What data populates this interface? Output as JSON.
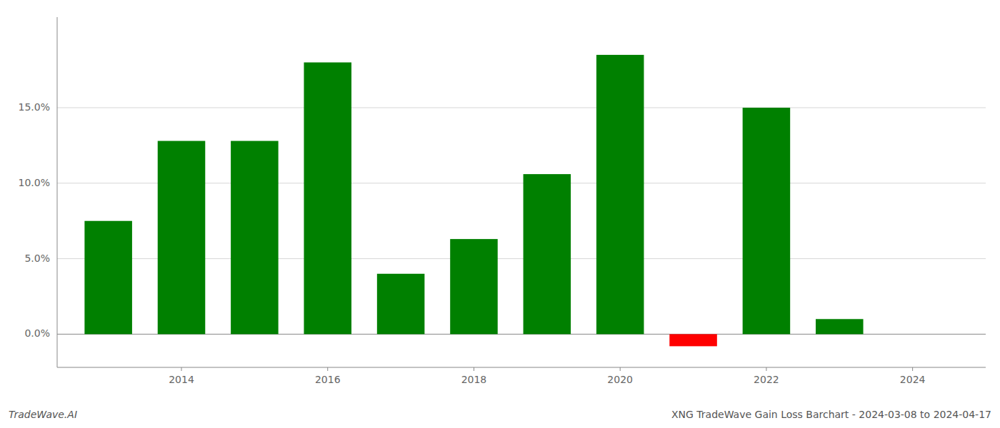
{
  "chart_data": {
    "type": "bar",
    "title": "XNG TradeWave Gain Loss Barchart - 2024-03-08 to 2024-04-17",
    "annotations": [
      "TradeWave.AI"
    ],
    "x": [
      2013,
      2014,
      2015,
      2016,
      2017,
      2018,
      2019,
      2020,
      2021,
      2022,
      2023
    ],
    "values": [
      7.5,
      12.8,
      12.8,
      18.0,
      4.0,
      6.3,
      10.6,
      18.5,
      -0.8,
      15.0,
      1.0
    ],
    "colors": [
      "#008000",
      "#008000",
      "#008000",
      "#008000",
      "#008000",
      "#008000",
      "#008000",
      "#008000",
      "#ff0000",
      "#008000",
      "#008000"
    ],
    "xlim": [
      2012.3,
      2025.0
    ],
    "xticks": [
      2014,
      2016,
      2018,
      2020,
      2022,
      2024
    ],
    "ylim": [
      -2.2,
      21.0
    ],
    "yticks": [
      {
        "value": 0.0,
        "label": "0.0%"
      },
      {
        "value": 5.0,
        "label": "5.0%"
      },
      {
        "value": 10.0,
        "label": "10.0%"
      },
      {
        "value": 15.0,
        "label": "15.0%"
      }
    ],
    "grid": true
  }
}
